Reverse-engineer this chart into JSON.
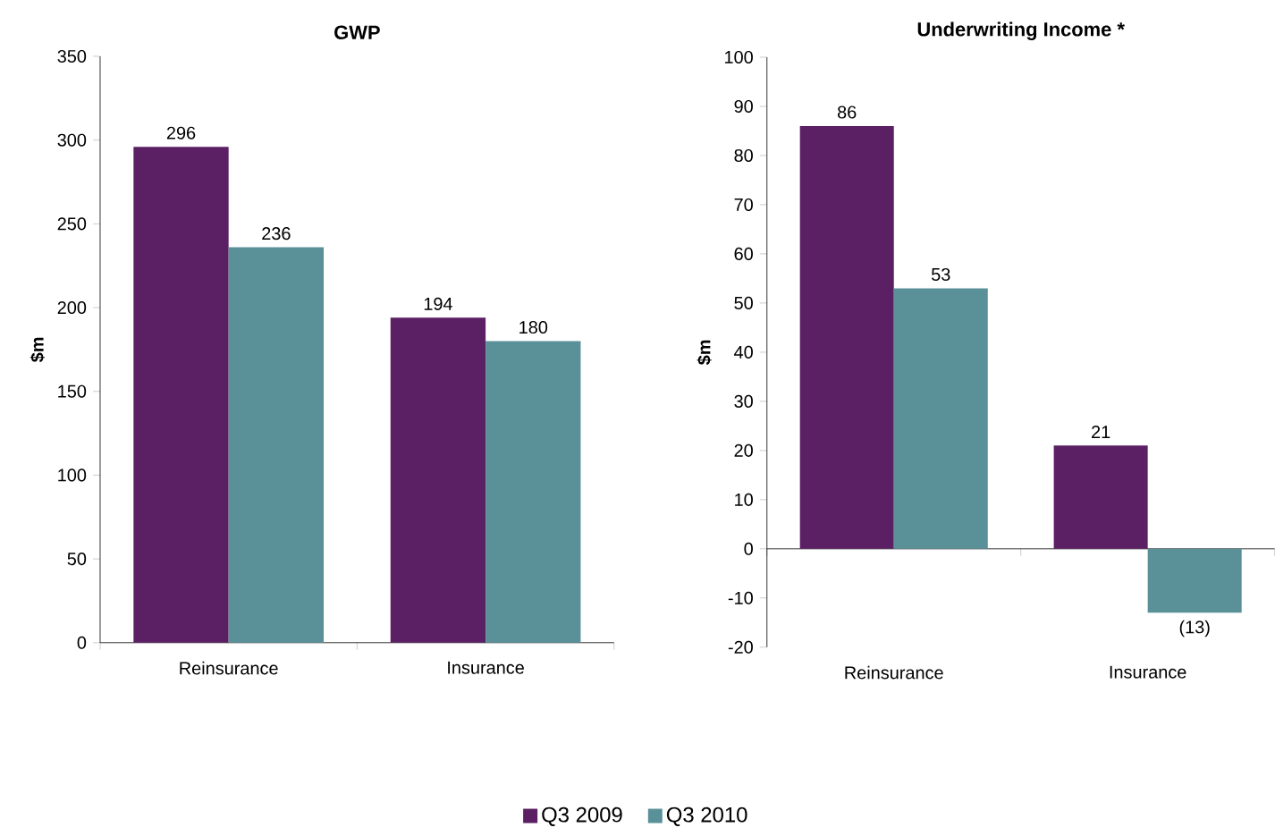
{
  "chart_data": [
    {
      "type": "bar",
      "title": "GWP",
      "ylabel": "$m",
      "categories": [
        "Reinsurance",
        "Insurance"
      ],
      "series": [
        {
          "name": "Q3 2009",
          "color": "#5b1f63",
          "values": [
            296,
            194
          ]
        },
        {
          "name": "Q3 2010",
          "color": "#5a9199",
          "values": [
            236,
            180
          ]
        }
      ],
      "ylim": [
        0,
        350
      ],
      "yticks": [
        0,
        50,
        100,
        150,
        200,
        250,
        300,
        350
      ],
      "data_labels": true,
      "legend": "bottom"
    },
    {
      "type": "bar",
      "title": "Underwriting Income *",
      "ylabel": "$m",
      "categories": [
        "Reinsurance",
        "Insurance"
      ],
      "series": [
        {
          "color": "#5b1f63",
          "values": [
            86,
            21
          ],
          "value_labels": [
            "86",
            "21"
          ]
        },
        {
          "color": "#5a9199",
          "values": [
            53,
            -13
          ],
          "value_labels": [
            "53",
            "(13)"
          ]
        }
      ],
      "ylim": [
        -20,
        100
      ],
      "yticks": [
        -20,
        -10,
        0,
        10,
        20,
        30,
        40,
        50,
        60,
        70,
        80,
        90,
        100
      ]
    }
  ]
}
